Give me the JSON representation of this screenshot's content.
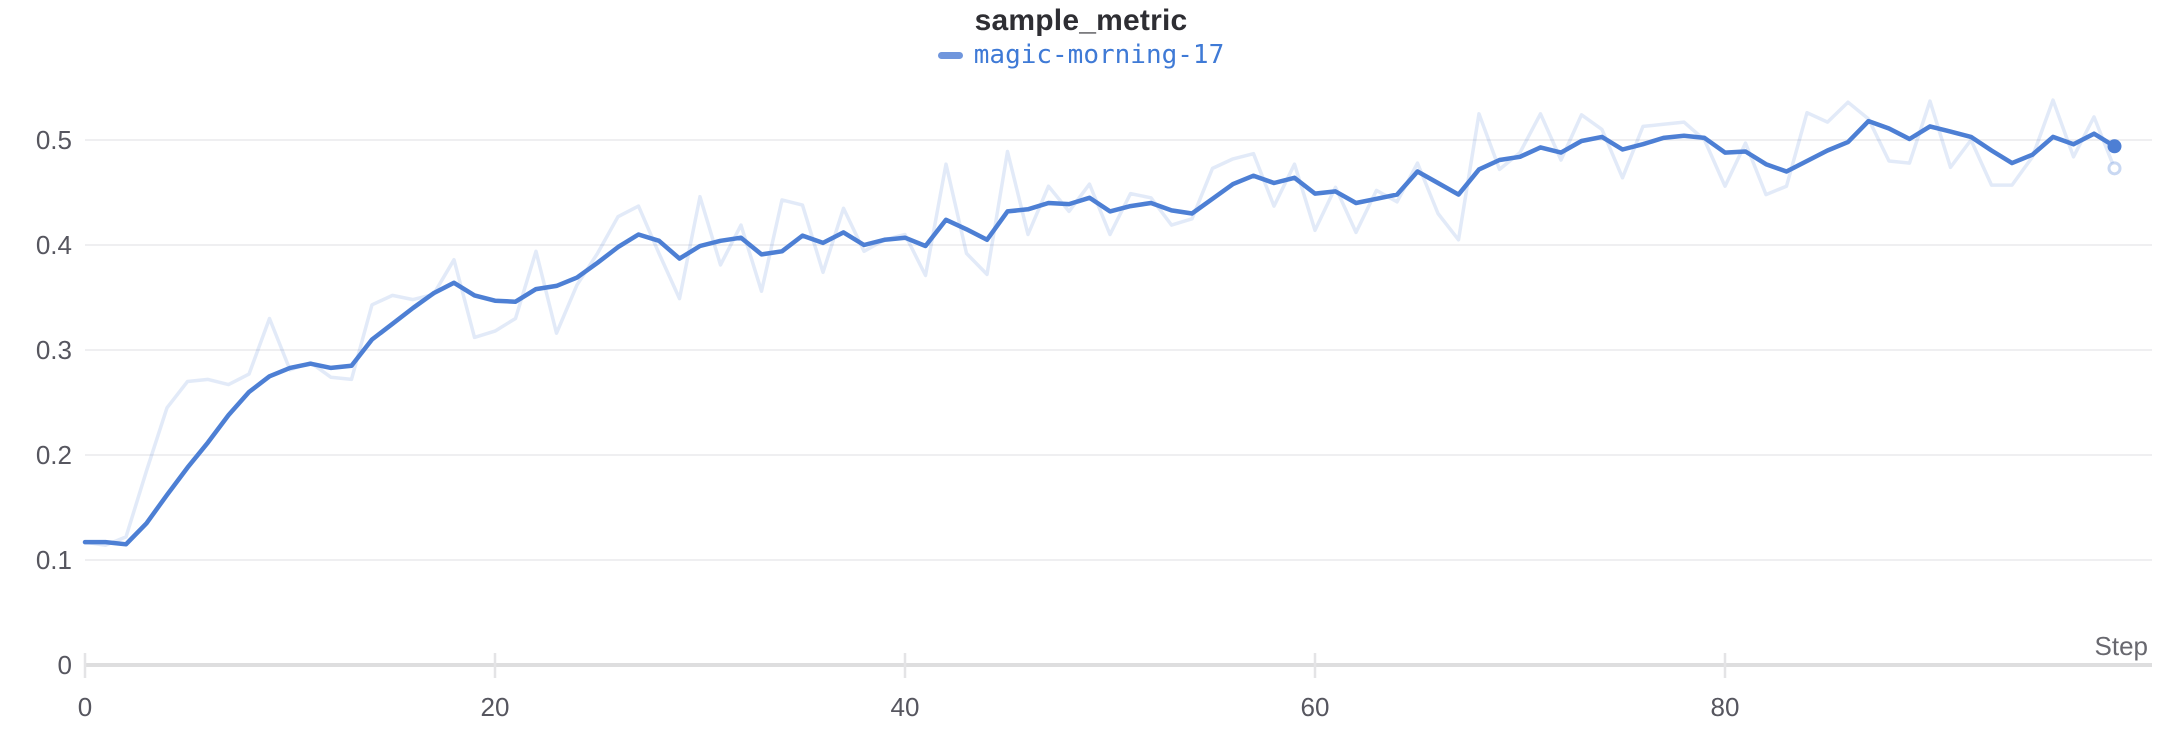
{
  "header": {
    "title": "sample_metric"
  },
  "legend": {
    "label": "magic-morning-17"
  },
  "colors": {
    "accent": "#4d7fd4",
    "legend_swatch": "#7096dd",
    "legend_text": "#3f7ad6",
    "raw_line_opacity": 0.16,
    "gridline": "#efeff1",
    "axis_baseline": "#dededf",
    "tick_mark": "#e4e4e6",
    "tick_label": "#56565f",
    "axis_title_text": "#68686f",
    "title_text": "#2e2e33",
    "background": "#ffffff"
  },
  "chart_data": {
    "type": "line",
    "title": "sample_metric",
    "xlabel": "Step",
    "ylabel": "",
    "x_ticks": [
      0,
      20,
      40,
      60,
      80
    ],
    "y_ticks": [
      0,
      0.1,
      0.2,
      0.3,
      0.4,
      0.5
    ],
    "xlim": [
      0,
      99
    ],
    "ylim": [
      0,
      0.55
    ],
    "grid": true,
    "legend_position": "top-center",
    "x_start": 0,
    "x_step": 1,
    "num_points": 100,
    "series": [
      {
        "name": "magic-morning-17 (raw)",
        "role": "raw",
        "values": [
          0.117,
          0.114,
          0.122,
          0.185,
          0.245,
          0.27,
          0.272,
          0.267,
          0.277,
          0.33,
          0.281,
          0.288,
          0.274,
          0.272,
          0.343,
          0.352,
          0.348,
          0.353,
          0.386,
          0.312,
          0.318,
          0.33,
          0.394,
          0.316,
          0.362,
          0.392,
          0.427,
          0.437,
          0.392,
          0.349,
          0.446,
          0.381,
          0.419,
          0.356,
          0.443,
          0.438,
          0.374,
          0.435,
          0.394,
          0.405,
          0.41,
          0.371,
          0.477,
          0.392,
          0.372,
          0.489,
          0.41,
          0.456,
          0.432,
          0.458,
          0.41,
          0.449,
          0.445,
          0.419,
          0.425,
          0.473,
          0.482,
          0.487,
          0.437,
          0.477,
          0.414,
          0.455,
          0.412,
          0.452,
          0.441,
          0.478,
          0.43,
          0.405,
          0.525,
          0.472,
          0.488,
          0.525,
          0.481,
          0.524,
          0.51,
          0.464,
          0.513,
          0.515,
          0.517,
          0.5,
          0.456,
          0.497,
          0.448,
          0.456,
          0.526,
          0.517,
          0.536,
          0.52,
          0.48,
          0.478,
          0.537,
          0.474,
          0.5,
          0.457,
          0.457,
          0.484,
          0.538,
          0.484,
          0.522,
          0.473
        ]
      },
      {
        "name": "magic-morning-17",
        "role": "smoothed",
        "values": [
          0.117,
          0.117,
          0.115,
          0.135,
          0.162,
          0.188,
          0.212,
          0.238,
          0.26,
          0.275,
          0.283,
          0.287,
          0.283,
          0.285,
          0.31,
          0.325,
          0.34,
          0.354,
          0.364,
          0.352,
          0.347,
          0.346,
          0.358,
          0.361,
          0.369,
          0.383,
          0.398,
          0.41,
          0.404,
          0.387,
          0.399,
          0.404,
          0.407,
          0.391,
          0.394,
          0.409,
          0.402,
          0.412,
          0.4,
          0.405,
          0.407,
          0.399,
          0.424,
          0.415,
          0.405,
          0.432,
          0.434,
          0.44,
          0.439,
          0.445,
          0.432,
          0.437,
          0.44,
          0.433,
          0.43,
          0.444,
          0.458,
          0.466,
          0.459,
          0.464,
          0.449,
          0.451,
          0.44,
          0.444,
          0.448,
          0.47,
          0.459,
          0.448,
          0.472,
          0.481,
          0.484,
          0.493,
          0.488,
          0.499,
          0.503,
          0.491,
          0.496,
          0.502,
          0.504,
          0.502,
          0.488,
          0.489,
          0.477,
          0.47,
          0.48,
          0.49,
          0.498,
          0.518,
          0.511,
          0.501,
          0.513,
          0.508,
          0.503,
          0.49,
          0.478,
          0.486,
          0.503,
          0.496,
          0.506,
          0.494
        ]
      }
    ]
  }
}
